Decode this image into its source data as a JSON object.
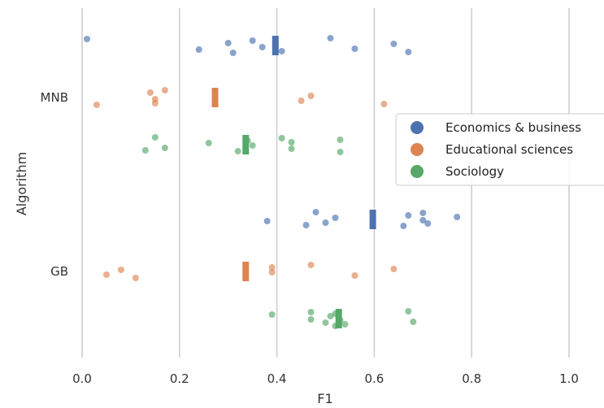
{
  "chart_data": {
    "type": "scatter",
    "title": "",
    "xlabel": "F1",
    "ylabel": "Algorithm",
    "xlim": [
      0,
      1.0
    ],
    "xticks": [
      "0.0",
      "0.2",
      "0.4",
      "0.6",
      "0.8",
      "1.0"
    ],
    "categories": [
      "MNB",
      "GB"
    ],
    "grid": "vertical",
    "legend_position": "right",
    "series": [
      {
        "name": "Economics & business",
        "color": "#4c72b0",
        "points": {
          "MNB": [
            0.01,
            0.24,
            0.3,
            0.31,
            0.35,
            0.37,
            0.41,
            0.51,
            0.56,
            0.64,
            0.67
          ],
          "GB": [
            0.38,
            0.46,
            0.48,
            0.5,
            0.52,
            0.66,
            0.67,
            0.7,
            0.7,
            0.71,
            0.77
          ]
        },
        "mean": {
          "MNB": 0.397,
          "GB": 0.597
        }
      },
      {
        "name": "Educational sciences",
        "color": "#dd8452",
        "points": {
          "MNB": [
            0.03,
            0.14,
            0.15,
            0.15,
            0.17,
            0.45,
            0.47,
            0.62
          ],
          "GB": [
            0.05,
            0.08,
            0.11,
            0.39,
            0.39,
            0.47,
            0.56,
            0.64
          ]
        },
        "mean": {
          "MNB": 0.273,
          "GB": 0.336
        }
      },
      {
        "name": "Sociology",
        "color": "#55a868",
        "points": {
          "MNB": [
            0.13,
            0.15,
            0.17,
            0.26,
            0.32,
            0.34,
            0.35,
            0.41,
            0.43,
            0.43,
            0.53,
            0.53
          ],
          "GB": [
            0.39,
            0.47,
            0.47,
            0.5,
            0.51,
            0.52,
            0.52,
            0.53,
            0.54,
            0.67,
            0.68
          ]
        },
        "mean": {
          "MNB": 0.336,
          "GB": 0.527
        }
      }
    ]
  }
}
